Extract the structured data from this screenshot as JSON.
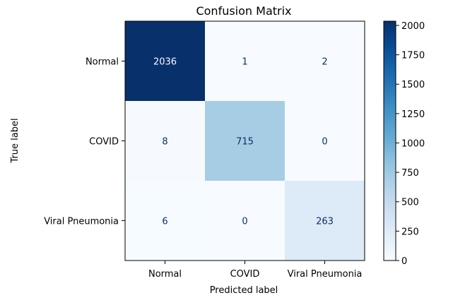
{
  "chart_data": {
    "type": "heatmap",
    "title": "Confusion Matrix",
    "xlabel": "Predicted label",
    "ylabel": "True label",
    "x_categories": [
      "Normal",
      "COVID",
      "Viral Pneumonia"
    ],
    "y_categories": [
      "Normal",
      "COVID",
      "Viral Pneumonia"
    ],
    "values": [
      [
        2036,
        1,
        2
      ],
      [
        8,
        715,
        0
      ],
      [
        6,
        0,
        263
      ]
    ],
    "colormap": "Blues",
    "colorbar": {
      "min": 0,
      "max": 2036,
      "ticks": [
        0,
        250,
        500,
        750,
        1000,
        1250,
        1500,
        1750,
        2000
      ]
    },
    "colors": {
      "low": "#f7fbff",
      "high": "#08306b",
      "text_light": "#f7fbff",
      "text_dark": "#08306b"
    }
  }
}
